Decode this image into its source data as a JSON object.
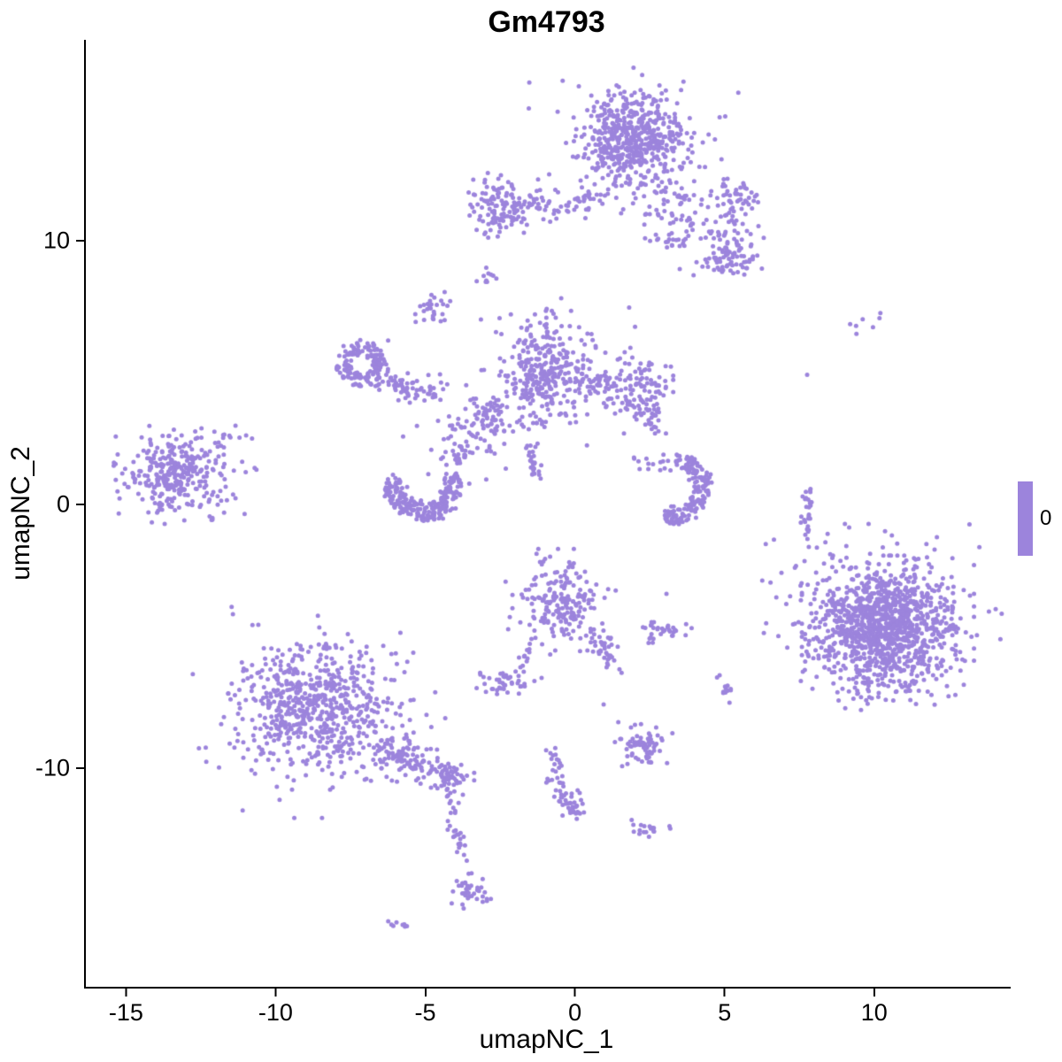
{
  "title": "Gm4793",
  "colors": {
    "point": "#9C84DC",
    "axis": "#000000",
    "text": "#000000"
  },
  "legend": {
    "label": "0"
  },
  "chart_data": {
    "type": "scatter",
    "title": "Gm4793",
    "xlabel": "umapNC_1",
    "ylabel": "umapNC_2",
    "xlim": [
      -16.4,
      14.5
    ],
    "ylim": [
      -18.3,
      17.6
    ],
    "x_ticks": [
      -15,
      -10,
      -5,
      0,
      5,
      10
    ],
    "y_ticks": [
      -10,
      0,
      10
    ],
    "grid": false,
    "legend_position": "right",
    "point_color": "#9C84DC",
    "point_radius": 2.5,
    "series_label": "0",
    "clusters": [
      {
        "name": "top-main-core",
        "type": "gauss",
        "cx": 1.8,
        "cy": 14.0,
        "sx": 0.85,
        "sy": 0.75,
        "n": 420
      },
      {
        "name": "top-main-halo",
        "type": "gauss",
        "cx": 1.9,
        "cy": 13.6,
        "sx": 1.4,
        "sy": 1.2,
        "n": 130
      },
      {
        "name": "top-right-spray",
        "type": "trail",
        "pts": [
          [
            1.6,
            12.4
          ],
          [
            3.0,
            11.6
          ],
          [
            4.2,
            10.6
          ],
          [
            5.0,
            9.8
          ]
        ],
        "jitter": 0.8,
        "n": 140
      },
      {
        "name": "top-right-blob",
        "type": "gauss",
        "cx": 5.2,
        "cy": 9.4,
        "sx": 0.42,
        "sy": 0.45,
        "n": 70
      },
      {
        "name": "top-right-upper-blob",
        "type": "gauss",
        "cx": 5.3,
        "cy": 11.6,
        "sx": 0.4,
        "sy": 0.35,
        "n": 45
      },
      {
        "name": "top-dash",
        "type": "trail",
        "pts": [
          [
            2.6,
            10.1
          ],
          [
            3.5,
            9.9
          ]
        ],
        "jitter": 0.12,
        "n": 14
      },
      {
        "name": "topleft-cluster",
        "type": "gauss",
        "cx": -2.5,
        "cy": 11.3,
        "sx": 0.55,
        "sy": 0.5,
        "n": 130
      },
      {
        "name": "topleft-bridge",
        "type": "trail",
        "pts": [
          [
            -1.7,
            11.4
          ],
          [
            -0.3,
            11.2
          ],
          [
            0.9,
            11.9
          ]
        ],
        "jitter": 0.25,
        "n": 55
      },
      {
        "name": "tiny-dot-upper",
        "type": "gauss",
        "cx": -3.0,
        "cy": 8.7,
        "sx": 0.18,
        "sy": 0.22,
        "n": 10
      },
      {
        "name": "small-blob-upper",
        "type": "gauss",
        "cx": -4.8,
        "cy": 7.4,
        "sx": 0.28,
        "sy": 0.4,
        "n": 28
      },
      {
        "name": "left-ring",
        "type": "ring",
        "cx": -7.2,
        "cy": 5.3,
        "r": 0.6,
        "thickness": 0.45,
        "a0": 0,
        "a1": 360,
        "n": 150
      },
      {
        "name": "ring-tail",
        "type": "trail",
        "pts": [
          [
            -6.6,
            4.8
          ],
          [
            -5.8,
            4.3
          ],
          [
            -5.0,
            4.2
          ],
          [
            -4.5,
            4.6
          ]
        ],
        "jitter": 0.28,
        "n": 70
      },
      {
        "name": "mid-cluster-core",
        "type": "gauss",
        "cx": -1.0,
        "cy": 5.2,
        "sx": 0.65,
        "sy": 0.85,
        "n": 260
      },
      {
        "name": "mid-cluster-halo",
        "type": "gauss",
        "cx": -0.8,
        "cy": 4.8,
        "sx": 1.1,
        "sy": 1.2,
        "n": 80
      },
      {
        "name": "mid-right-lobe",
        "type": "gauss",
        "cx": 2.1,
        "cy": 4.3,
        "sx": 0.45,
        "sy": 0.65,
        "n": 120
      },
      {
        "name": "mid-bridge",
        "type": "trail",
        "pts": [
          [
            0.3,
            4.7
          ],
          [
            1.3,
            4.4
          ]
        ],
        "jitter": 0.3,
        "n": 40
      },
      {
        "name": "mid-lobe-tail",
        "type": "trail",
        "pts": [
          [
            2.5,
            3.4
          ],
          [
            2.7,
            2.8
          ]
        ],
        "jitter": 0.12,
        "n": 10
      },
      {
        "name": "center-scatter",
        "type": "gauss",
        "cx": -3.3,
        "cy": 2.9,
        "sx": 1.0,
        "sy": 0.85,
        "n": 90
      },
      {
        "name": "center-micro-blob",
        "type": "gauss",
        "cx": -2.9,
        "cy": 3.4,
        "sx": 0.25,
        "sy": 0.25,
        "n": 30
      },
      {
        "name": "center-dash-vert",
        "type": "trail",
        "pts": [
          [
            -1.6,
            2.3
          ],
          [
            -1.4,
            1.1
          ]
        ],
        "jitter": 0.12,
        "n": 25
      },
      {
        "name": "farleft-core",
        "type": "gauss",
        "cx": -13.4,
        "cy": 1.1,
        "sx": 0.8,
        "sy": 0.75,
        "n": 260
      },
      {
        "name": "farleft-halo",
        "type": "gauss",
        "cx": -13.0,
        "cy": 0.9,
        "sx": 1.2,
        "sy": 1.0,
        "n": 70
      },
      {
        "name": "farleft-outlier",
        "type": "gauss",
        "cx": -11.5,
        "cy": 2.5,
        "sx": 0.25,
        "sy": 0.2,
        "n": 8
      },
      {
        "name": "lower-crescent",
        "type": "ring",
        "cx": -5.1,
        "cy": 0.7,
        "r": 1.0,
        "thickness": 0.6,
        "a0": 160,
        "a1": 380,
        "n": 240
      },
      {
        "name": "crescent-spur",
        "type": "trail",
        "pts": [
          [
            -4.2,
            1.4
          ],
          [
            -3.6,
            2.2
          ]
        ],
        "jitter": 0.22,
        "n": 25
      },
      {
        "name": "right-crescent",
        "type": "ring",
        "cx": 3.1,
        "cy": 0.6,
        "r": 1.1,
        "thickness": 0.55,
        "a0": -100,
        "a1": 80,
        "n": 170
      },
      {
        "name": "right-crescent-top",
        "type": "gauss",
        "cx": 2.6,
        "cy": 1.6,
        "sx": 0.3,
        "sy": 0.25,
        "n": 15
      },
      {
        "name": "right-strip",
        "type": "trail",
        "pts": [
          [
            7.7,
            0.6
          ],
          [
            7.7,
            -0.8
          ],
          [
            7.9,
            -1.9
          ]
        ],
        "jitter": 0.1,
        "n": 30
      },
      {
        "name": "topright-dots",
        "type": "gauss",
        "cx": 9.6,
        "cy": 6.9,
        "sx": 0.35,
        "sy": 0.18,
        "n": 6
      },
      {
        "name": "bigright-core",
        "type": "gauss",
        "cx": 10.4,
        "cy": -4.7,
        "sx": 1.15,
        "sy": 1.1,
        "n": 950
      },
      {
        "name": "bigright-halo",
        "type": "gauss",
        "cx": 10.2,
        "cy": -4.5,
        "sx": 1.6,
        "sy": 1.5,
        "n": 300
      },
      {
        "name": "centerlow-cluster",
        "type": "gauss",
        "cx": -0.5,
        "cy": -3.7,
        "sx": 0.75,
        "sy": 0.8,
        "n": 210
      },
      {
        "name": "centerlow-tail",
        "type": "trail",
        "pts": [
          [
            0.4,
            -4.6
          ],
          [
            1.0,
            -5.5
          ],
          [
            1.2,
            -6.0
          ]
        ],
        "jitter": 0.18,
        "n": 35
      },
      {
        "name": "small-blob-right",
        "type": "gauss",
        "cx": 2.9,
        "cy": -4.9,
        "sx": 0.38,
        "sy": 0.26,
        "n": 35
      },
      {
        "name": "small-blob-center",
        "type": "gauss",
        "cx": -2.4,
        "cy": -6.7,
        "sx": 0.5,
        "sy": 0.28,
        "n": 45
      },
      {
        "name": "center-trail-up",
        "type": "trail",
        "pts": [
          [
            -1.9,
            -6.2
          ],
          [
            -1.6,
            -5.2
          ]
        ],
        "jitter": 0.12,
        "n": 12
      },
      {
        "name": "small-dash-right",
        "type": "gauss",
        "cx": 5.0,
        "cy": -7.0,
        "sx": 0.18,
        "sy": 0.3,
        "n": 12
      },
      {
        "name": "botleft-core",
        "type": "gauss",
        "cx": -8.7,
        "cy": -7.7,
        "sx": 1.3,
        "sy": 1.25,
        "n": 520
      },
      {
        "name": "botleft-halo",
        "type": "gauss",
        "cx": -8.5,
        "cy": -7.9,
        "sx": 1.8,
        "sy": 1.6,
        "n": 160
      },
      {
        "name": "botleft-tail",
        "type": "trail",
        "pts": [
          [
            -6.6,
            -9.2
          ],
          [
            -5.6,
            -9.7
          ],
          [
            -4.8,
            -10.1
          ]
        ],
        "jitter": 0.32,
        "n": 110
      },
      {
        "name": "tail-blob",
        "type": "gauss",
        "cx": -4.3,
        "cy": -10.4,
        "sx": 0.35,
        "sy": 0.3,
        "n": 55
      },
      {
        "name": "tail-strip",
        "type": "trail",
        "pts": [
          [
            -4.2,
            -11.1
          ],
          [
            -4.0,
            -12.4
          ],
          [
            -3.8,
            -13.6
          ],
          [
            -3.7,
            -14.3
          ]
        ],
        "jitter": 0.13,
        "n": 32
      },
      {
        "name": "strip-end-blob",
        "type": "gauss",
        "cx": -3.6,
        "cy": -14.8,
        "sx": 0.3,
        "sy": 0.32,
        "n": 38
      },
      {
        "name": "bottom-dash",
        "type": "trail",
        "pts": [
          [
            -6.3,
            -15.9
          ],
          [
            -5.8,
            -16.0
          ]
        ],
        "jitter": 0.08,
        "n": 8
      },
      {
        "name": "center-bottom-hook",
        "type": "trail",
        "pts": [
          [
            -0.8,
            -9.3
          ],
          [
            -0.7,
            -10.4
          ],
          [
            -0.4,
            -11.3
          ],
          [
            0.0,
            -11.7
          ]
        ],
        "jitter": 0.13,
        "n": 45
      },
      {
        "name": "hook-blob",
        "type": "gauss",
        "cx": -0.2,
        "cy": -11.4,
        "sx": 0.22,
        "sy": 0.25,
        "n": 20
      },
      {
        "name": "small-cluster-low",
        "type": "gauss",
        "cx": 2.2,
        "cy": -9.2,
        "sx": 0.45,
        "sy": 0.38,
        "n": 70
      },
      {
        "name": "small-dash-low",
        "type": "gauss",
        "cx": 2.3,
        "cy": -12.3,
        "sx": 0.38,
        "sy": 0.14,
        "n": 18
      },
      {
        "name": "singles",
        "type": "points",
        "pts": [
          [
            7.7,
            4.9
          ],
          [
            5.6,
            8.7
          ],
          [
            9.9,
            6.7
          ],
          [
            -10.7,
            1.3
          ],
          [
            -6.3,
            6.2
          ],
          [
            8.0,
            -2.6
          ],
          [
            1.5,
            -6.4
          ],
          [
            0.9,
            -7.6
          ],
          [
            -12.2,
            -0.6
          ],
          [
            3.0,
            -3.4
          ],
          [
            -3.2,
            7.0
          ]
        ]
      }
    ]
  }
}
